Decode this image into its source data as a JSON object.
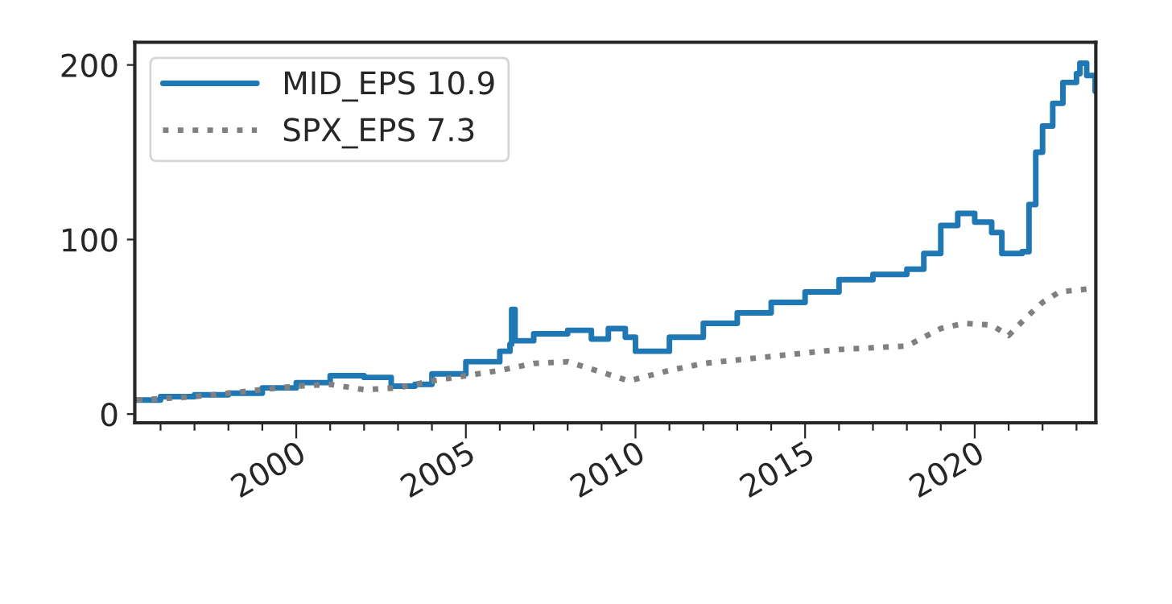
{
  "chart_data": {
    "type": "line",
    "xlim": [
      1995.24,
      2023.57
    ],
    "ylim": [
      -5,
      213
    ],
    "yticks": [
      0,
      100,
      200
    ],
    "xticks": [
      {
        "value": 1996,
        "label": null
      },
      {
        "value": 1997,
        "label": null
      },
      {
        "value": 1998,
        "label": null
      },
      {
        "value": 1999,
        "label": null
      },
      {
        "value": 2000,
        "label": "2000"
      },
      {
        "value": 2001,
        "label": null
      },
      {
        "value": 2002,
        "label": null
      },
      {
        "value": 2003,
        "label": null
      },
      {
        "value": 2004,
        "label": null
      },
      {
        "value": 2005,
        "label": "2005"
      },
      {
        "value": 2006,
        "label": null
      },
      {
        "value": 2007,
        "label": null
      },
      {
        "value": 2008,
        "label": null
      },
      {
        "value": 2009,
        "label": null
      },
      {
        "value": 2010,
        "label": "2010"
      },
      {
        "value": 2011,
        "label": null
      },
      {
        "value": 2012,
        "label": null
      },
      {
        "value": 2013,
        "label": null
      },
      {
        "value": 2014,
        "label": null
      },
      {
        "value": 2015,
        "label": "2015"
      },
      {
        "value": 2016,
        "label": null
      },
      {
        "value": 2017,
        "label": null
      },
      {
        "value": 2018,
        "label": null
      },
      {
        "value": 2019,
        "label": null
      },
      {
        "value": 2020,
        "label": "2020"
      },
      {
        "value": 2021,
        "label": null
      },
      {
        "value": 2022,
        "label": null
      },
      {
        "value": 2023,
        "label": null
      }
    ],
    "legend": "top left",
    "grid": false,
    "series": [
      {
        "name": "MID_EPS 10.9",
        "type": "step",
        "line_style": "solid",
        "color": "#1f77b4",
        "x": [
          1995.3,
          1996,
          1997,
          1998,
          1999,
          2000,
          2001,
          2002,
          2002.8,
          2003.5,
          2004,
          2005,
          2006,
          2006.3,
          2006.35,
          2006.45,
          2007,
          2008,
          2008.7,
          2009.2,
          2009.7,
          2010,
          2011,
          2012,
          2013,
          2014,
          2015,
          2016,
          2017,
          2018,
          2018.5,
          2019,
          2019.5,
          2020,
          2020.5,
          2020.8,
          2021.4,
          2021.6,
          2021.8,
          2022,
          2022.3,
          2022.6,
          2023,
          2023.1,
          2023.3,
          2023.55
        ],
        "values": [
          8,
          10,
          11,
          12,
          15,
          18,
          22,
          21,
          16,
          17,
          23,
          30,
          36,
          40,
          60,
          42,
          46,
          48,
          43,
          49,
          44,
          36,
          44,
          52,
          58,
          64,
          70,
          77,
          80,
          83,
          92,
          108,
          115,
          110,
          104,
          92,
          93,
          120,
          150,
          165,
          178,
          190,
          195,
          201,
          194,
          185
        ]
      },
      {
        "name": "SPX_EPS 7.3",
        "line_style": "dotted",
        "color": "#808080",
        "x": [
          1995.3,
          1997,
          1998,
          1999,
          2000,
          2001,
          2002,
          2003,
          2004,
          2005,
          2006,
          2007,
          2008,
          2009,
          2009.8,
          2011,
          2012,
          2013,
          2014,
          2015,
          2016,
          2017,
          2018,
          2019,
          2019.7,
          2020.5,
          2021,
          2021.5,
          2022,
          2022.5,
          2023.5
        ],
        "values": [
          8,
          10,
          12,
          14,
          16,
          17,
          14,
          15,
          19,
          22,
          25,
          29,
          30,
          24,
          19,
          25,
          29,
          31,
          33,
          35,
          37,
          38,
          39,
          49,
          52,
          51,
          45,
          55,
          64,
          70,
          72
        ]
      }
    ]
  }
}
